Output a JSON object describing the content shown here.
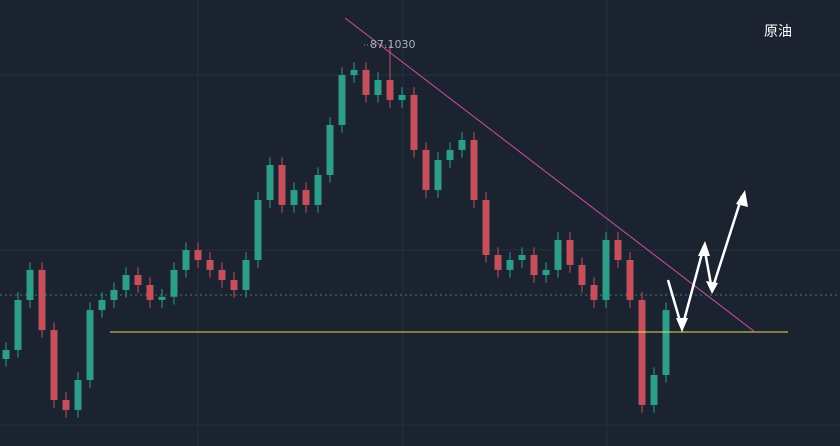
{
  "chart_data": {
    "type": "candlestick",
    "title": "原油",
    "annotation": {
      "label": "87.1030",
      "value": 87.103
    },
    "ylim": [
      61.3,
      90
    ],
    "up_color": "#2e9e8a",
    "down_color": "#c5505c",
    "series": [
      {
        "open": [
          66.9,
          67.48,
          70.7,
          72.63,
          68.76,
          64.26,
          63.62,
          65.55,
          70.05,
          70.7,
          71.34,
          72.3,
          71.66,
          70.7,
          70.9,
          72.63,
          73.91,
          73.27,
          72.63,
          71.98,
          71.34,
          73.27,
          77.13,
          79.38,
          76.81,
          77.77,
          76.81,
          78.74,
          81.96,
          85.17,
          85.5,
          83.89,
          84.85,
          83.57,
          83.89,
          80.35,
          77.77,
          79.7,
          80.35,
          80.99,
          77.13,
          73.59,
          72.63,
          73.27,
          73.59,
          72.3,
          72.63,
          74.56,
          72.95,
          71.66,
          70.7,
          74.56,
          73.27,
          70.7,
          63.94,
          65.87
        ],
        "high": [
          67.98,
          71.2,
          73.13,
          73.13,
          69.26,
          64.76,
          66.05,
          70.55,
          71.2,
          71.84,
          72.8,
          72.8,
          72.16,
          71.4,
          73.13,
          74.41,
          74.41,
          73.77,
          73.13,
          72.48,
          73.77,
          77.63,
          79.88,
          79.88,
          78.27,
          78.27,
          79.24,
          82.46,
          85.67,
          86.0,
          86.0,
          85.35,
          87.103,
          84.39,
          84.39,
          80.85,
          80.2,
          80.85,
          81.49,
          81.49,
          77.63,
          74.09,
          73.77,
          74.09,
          74.09,
          73.13,
          75.06,
          75.06,
          73.45,
          72.16,
          75.06,
          75.06,
          73.77,
          71.2,
          66.37,
          70.55
        ],
        "low": [
          66.4,
          66.98,
          70.2,
          68.26,
          63.76,
          63.12,
          63.12,
          65.05,
          69.55,
          70.2,
          70.84,
          71.16,
          70.2,
          70.2,
          70.4,
          72.13,
          72.77,
          72.13,
          71.48,
          70.84,
          70.84,
          72.77,
          76.63,
          76.31,
          76.31,
          76.31,
          76.31,
          78.24,
          81.46,
          84.67,
          83.39,
          83.39,
          83.07,
          83.07,
          79.85,
          77.27,
          77.27,
          79.2,
          79.85,
          76.63,
          73.09,
          72.13,
          72.13,
          72.77,
          71.8,
          71.8,
          72.13,
          72.45,
          71.16,
          70.2,
          70.2,
          72.77,
          70.2,
          63.44,
          63.44,
          65.37
        ],
        "close": [
          67.48,
          70.7,
          72.63,
          68.76,
          64.26,
          63.62,
          65.55,
          70.05,
          70.7,
          71.34,
          72.3,
          71.66,
          70.7,
          70.9,
          72.63,
          73.91,
          73.27,
          72.63,
          71.98,
          71.34,
          73.27,
          77.13,
          79.38,
          76.81,
          77.77,
          76.81,
          78.74,
          81.96,
          85.17,
          85.5,
          83.89,
          84.85,
          83.57,
          83.89,
          80.35,
          77.77,
          79.7,
          80.35,
          80.99,
          77.13,
          73.59,
          72.63,
          73.27,
          73.59,
          72.3,
          72.63,
          74.56,
          72.95,
          71.66,
          70.7,
          74.56,
          73.27,
          70.7,
          63.94,
          65.87,
          70.05
        ]
      }
    ]
  }
}
